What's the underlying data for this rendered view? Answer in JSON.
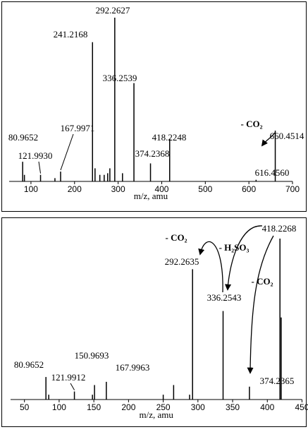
{
  "chart_data": [
    {
      "type": "stem",
      "xlabel": "m/z, amu",
      "color": "#000000",
      "x": [
        80.9652,
        85,
        121.993,
        155,
        167.9971,
        241.2168,
        247,
        258,
        268,
        276,
        281,
        292.2627,
        310,
        336.2539,
        374.2368,
        418.2248,
        616.456,
        660.4514
      ],
      "x_labels": [
        "80.9652",
        null,
        "121.9930",
        null,
        "167.9971",
        "241.2168",
        null,
        null,
        null,
        null,
        null,
        "292.2627",
        null,
        "336.2539",
        "374.2368",
        "418.2248",
        "616.4560",
        "660.4514"
      ],
      "values": [
        12,
        4,
        4,
        2,
        6,
        85,
        8,
        4,
        4,
        5,
        8,
        100,
        5,
        60,
        11,
        26,
        1,
        31
      ],
      "xlim": [
        50,
        700
      ],
      "xticks": [
        100,
        200,
        300,
        400,
        500,
        600,
        700
      ],
      "ylim": [
        0,
        100
      ],
      "annotations": [
        "- CO₂"
      ]
    },
    {
      "type": "stem",
      "xlabel": "m/z, amu",
      "color": "#000000",
      "x": [
        80.9652,
        85,
        121.9912,
        148,
        150.9693,
        167.9963,
        250,
        265,
        288,
        292.2635,
        336.2543,
        374.2365,
        418.2268,
        420
      ],
      "x_labels": [
        "80.9652",
        null,
        "121.9912",
        null,
        "150.9693",
        "167.9963",
        null,
        null,
        null,
        "292.2635",
        "336.2543",
        "374.2365",
        "418.2268",
        null
      ],
      "values": [
        14,
        3,
        5,
        3,
        9,
        11,
        3,
        9,
        3,
        81,
        55,
        8,
        100,
        51
      ],
      "xlim": [
        30,
        450
      ],
      "xticks": [
        50,
        100,
        150,
        200,
        250,
        300,
        350,
        400,
        450
      ],
      "ylim": [
        0,
        100
      ],
      "annotations": [
        "- CO₂",
        "- H₂SO₃",
        "- CO₂"
      ]
    }
  ]
}
